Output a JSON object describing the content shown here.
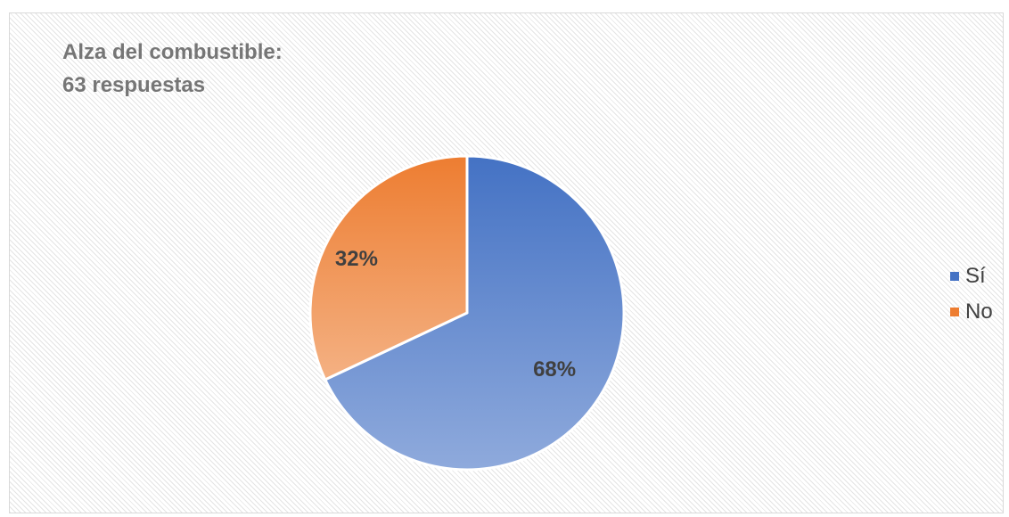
{
  "chart_data": {
    "type": "pie",
    "title_lines": [
      "Alza del combustible:",
      "63 respuestas"
    ],
    "categories": [
      "Sí",
      "No"
    ],
    "values": [
      68,
      32
    ],
    "data_labels": [
      "68%",
      "32%"
    ],
    "colors": [
      "#4472C4",
      "#ED7D31"
    ],
    "legend_position": "right",
    "grid": false
  }
}
